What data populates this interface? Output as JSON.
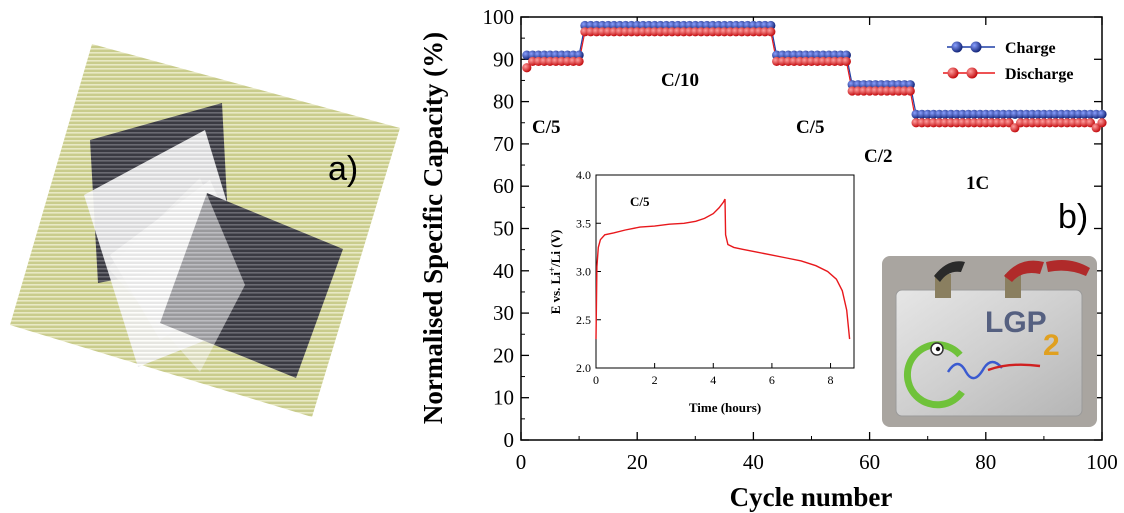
{
  "panel_a_label": "a)",
  "panel_b_label": "b)",
  "chart_data": [
    {
      "type": "scatter",
      "xlabel": "Cycle number",
      "ylabel": "Normalised Specific Capacity (%)",
      "xlim": [
        0,
        100
      ],
      "ylim": [
        0,
        100
      ],
      "xticks": [
        "0",
        "20",
        "40",
        "60",
        "80",
        "100"
      ],
      "yticks": [
        "0",
        "10",
        "20",
        "30",
        "40",
        "50",
        "60",
        "70",
        "80",
        "90",
        "100"
      ],
      "legend_position": "top-right",
      "legend": [
        "Charge",
        "Discharge"
      ],
      "segments": [
        {
          "label": "C/5",
          "cycles": [
            1,
            11
          ],
          "charge": 91,
          "discharge": 89.5
        },
        {
          "label": "C/10",
          "cycles": [
            11,
            44
          ],
          "charge": 98,
          "discharge": 96.5
        },
        {
          "label": "C/5",
          "cycles": [
            44,
            57
          ],
          "charge": 91,
          "discharge": 89.5
        },
        {
          "label": "C/2",
          "cycles": [
            57,
            68
          ],
          "charge": 84,
          "discharge": 82.5
        },
        {
          "label": "1C",
          "cycles": [
            68,
            101
          ],
          "charge": 77,
          "discharge": 75
        }
      ],
      "series_colors": {
        "Charge": "#1f3fa6",
        "Discharge": "#e8181c"
      }
    },
    {
      "type": "line",
      "annotation": "C/5",
      "xlabel": "Time (hours)",
      "ylabel": "E vs. Li+/Li (V)",
      "xlim": [
        0,
        8.8
      ],
      "ylim": [
        2.0,
        4.0
      ],
      "xticks": [
        "0",
        "2",
        "4",
        "6",
        "8"
      ],
      "yticks": [
        "2.0",
        "2.5",
        "3.0",
        "3.5",
        "4.0"
      ],
      "x": [
        0,
        0.03,
        0.08,
        0.15,
        0.3,
        0.6,
        1,
        1.5,
        2,
        2.5,
        3,
        3.4,
        3.7,
        4.0,
        4.2,
        4.35,
        4.4,
        4.42,
        4.5,
        4.7,
        5,
        5.5,
        6,
        6.5,
        7,
        7.5,
        7.9,
        8.2,
        8.4,
        8.55,
        8.65
      ],
      "y": [
        2.3,
        3.05,
        3.25,
        3.33,
        3.38,
        3.4,
        3.43,
        3.46,
        3.47,
        3.49,
        3.5,
        3.52,
        3.55,
        3.6,
        3.66,
        3.72,
        3.75,
        3.38,
        3.28,
        3.25,
        3.23,
        3.2,
        3.17,
        3.14,
        3.11,
        3.06,
        3.0,
        2.92,
        2.8,
        2.6,
        2.3
      ],
      "color": "#e8181c"
    }
  ],
  "photo_b": {
    "logo_text": "LGP",
    "logo_superscript": "2"
  }
}
